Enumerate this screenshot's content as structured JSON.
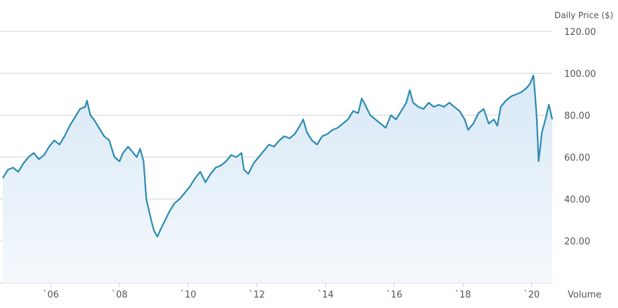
{
  "chart_data": {
    "type": "area",
    "ylabel": "Daily Price ($)",
    "volume_label": "Volume",
    "y_ticks": [
      "120.00",
      "100.00",
      "80.00",
      "60.00",
      "40.00",
      "20.00"
    ],
    "y_tick_values": [
      120,
      100,
      80,
      60,
      40,
      20
    ],
    "x_ticks": [
      "`06",
      "`08",
      "`10",
      "`12",
      "`14",
      "`16",
      "`18",
      "`20"
    ],
    "x_tick_years": [
      2006,
      2008,
      2010,
      2012,
      2014,
      2016,
      2018,
      2020
    ],
    "x_range": [
      2004.6,
      2020.6
    ],
    "ylim": [
      0,
      120
    ],
    "grid": true,
    "colors": {
      "line": "#2b8bb0",
      "fill_top": "#d8e9f6",
      "fill_bottom": "#f4f8fc",
      "grid": "#cfcfcf"
    },
    "series": [
      {
        "x": [
          2004.6,
          2004.75,
          2004.9,
          2005.05,
          2005.2,
          2005.35,
          2005.5,
          2005.65,
          2005.8,
          2005.95,
          2006.1,
          2006.25,
          2006.4,
          2006.55,
          2006.7,
          2006.85,
          2007.0,
          2007.05,
          2007.15,
          2007.25,
          2007.4,
          2007.55,
          2007.7,
          2007.85,
          2008.0,
          2008.1,
          2008.25,
          2008.4,
          2008.5,
          2008.6,
          2008.7,
          2008.78,
          2008.85,
          2008.92,
          2009.0,
          2009.1,
          2009.18,
          2009.3,
          2009.45,
          2009.6,
          2009.75,
          2009.9,
          2010.05,
          2010.2,
          2010.35,
          2010.5,
          2010.65,
          2010.8,
          2010.95,
          2011.1,
          2011.25,
          2011.4,
          2011.55,
          2011.62,
          2011.75,
          2011.9,
          2012.05,
          2012.2,
          2012.35,
          2012.5,
          2012.65,
          2012.8,
          2012.95,
          2013.1,
          2013.25,
          2013.35,
          2013.45,
          2013.6,
          2013.75,
          2013.9,
          2014.05,
          2014.2,
          2014.35,
          2014.5,
          2014.65,
          2014.8,
          2014.95,
          2015.05,
          2015.15,
          2015.3,
          2015.45,
          2015.6,
          2015.75,
          2015.9,
          2016.05,
          2016.2,
          2016.35,
          2016.45,
          2016.55,
          2016.7,
          2016.85,
          2017.0,
          2017.15,
          2017.3,
          2017.45,
          2017.6,
          2017.75,
          2017.9,
          2018.05,
          2018.15,
          2018.3,
          2018.45,
          2018.6,
          2018.75,
          2018.9,
          2019.0,
          2019.1,
          2019.25,
          2019.4,
          2019.55,
          2019.7,
          2019.85,
          2019.95,
          2020.05,
          2020.1,
          2020.15,
          2020.2,
          2020.3,
          2020.4,
          2020.5,
          2020.6
        ],
        "values": [
          50,
          54,
          55,
          53,
          57,
          60,
          62,
          59,
          61,
          65,
          68,
          66,
          70,
          75,
          79,
          83,
          84,
          87,
          80,
          78,
          74,
          70,
          68,
          60,
          58,
          62,
          65,
          62,
          60,
          64,
          58,
          40,
          35,
          30,
          25,
          22,
          25,
          29,
          34,
          38,
          40,
          43,
          46,
          50,
          53,
          48,
          52,
          55,
          56,
          58,
          61,
          60,
          62,
          54,
          52,
          57,
          60,
          63,
          66,
          65,
          68,
          70,
          69,
          71,
          75,
          78,
          72,
          68,
          66,
          70,
          71,
          73,
          74,
          76,
          78,
          82,
          81,
          88,
          85,
          80,
          78,
          76,
          74,
          80,
          78,
          82,
          86,
          92,
          86,
          84,
          83,
          86,
          84,
          85,
          84,
          86,
          84,
          82,
          78,
          73,
          76,
          81,
          83,
          76,
          78,
          75,
          84,
          87,
          89,
          90,
          91,
          93,
          95,
          99,
          90,
          78,
          58,
          72,
          78,
          85,
          78
        ]
      }
    ]
  }
}
